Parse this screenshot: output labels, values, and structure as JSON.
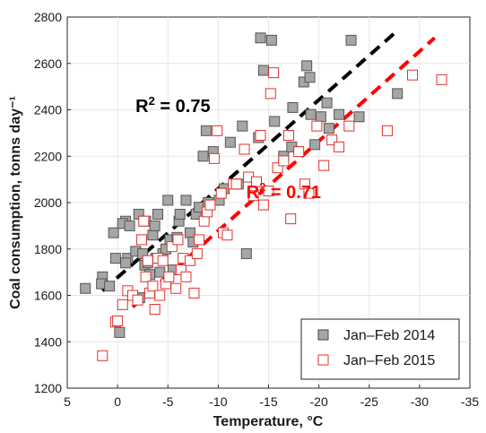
{
  "chart_data": {
    "type": "scatter",
    "xlabel": "Temperature, °C",
    "ylabel": "Coal consumption, tonns day⁻¹",
    "xlim": [
      5,
      -35
    ],
    "ylim": [
      1200,
      2800
    ],
    "x_reversed": true,
    "xticks": [
      5,
      0,
      -5,
      -10,
      -15,
      -20,
      -25,
      -30,
      -35
    ],
    "yticks": [
      1200,
      1400,
      1600,
      1800,
      2000,
      2200,
      2400,
      2600,
      2800
    ],
    "xtick_labels": [
      "5",
      "0",
      "-5",
      "-10",
      "-15",
      "-20",
      "-25",
      "-30",
      "-35"
    ],
    "ytick_labels": [
      "1200",
      "1400",
      "1600",
      "1800",
      "2000",
      "2200",
      "2400",
      "2600",
      "2800"
    ],
    "grid": true,
    "legend_position": "bottom-right",
    "series": [
      {
        "name": "Jan–Feb 2014",
        "marker": "filled-square",
        "color": "#555555",
        "fill": "#a6a6a6",
        "points": [
          [
            3.2,
            1630
          ],
          [
            1.5,
            1680
          ],
          [
            1.6,
            1650
          ],
          [
            0.8,
            1640
          ],
          [
            0.4,
            1870
          ],
          [
            0.2,
            1760
          ],
          [
            -0.8,
            1920
          ],
          [
            -0.5,
            1910
          ],
          [
            -1.0,
            1760
          ],
          [
            -1.2,
            1900
          ],
          [
            -0.2,
            1440
          ],
          [
            -0.8,
            1740
          ],
          [
            -1.5,
            1600
          ],
          [
            -1.8,
            1790
          ],
          [
            -2.1,
            1950
          ],
          [
            -2.2,
            1590
          ],
          [
            -2.5,
            1780
          ],
          [
            -2.7,
            1730
          ],
          [
            -2.8,
            1920
          ],
          [
            -3.0,
            1740
          ],
          [
            -3.2,
            1690
          ],
          [
            -3.5,
            1860
          ],
          [
            -3.7,
            1900
          ],
          [
            -3.8,
            1760
          ],
          [
            -4.0,
            1950
          ],
          [
            -4.2,
            1700
          ],
          [
            -4.5,
            1780
          ],
          [
            -4.8,
            1800
          ],
          [
            -5.0,
            2010
          ],
          [
            -5.2,
            1840
          ],
          [
            -5.5,
            1710
          ],
          [
            -5.9,
            1850
          ],
          [
            -6.1,
            1920
          ],
          [
            -6.2,
            1950
          ],
          [
            -6.8,
            2010
          ],
          [
            -7.2,
            1870
          ],
          [
            -7.5,
            1830
          ],
          [
            -7.8,
            1950
          ],
          [
            -8.1,
            1980
          ],
          [
            -8.5,
            2200
          ],
          [
            -8.8,
            2310
          ],
          [
            -9.0,
            2000
          ],
          [
            -9.5,
            2220
          ],
          [
            -10.1,
            2010
          ],
          [
            -10.6,
            2060
          ],
          [
            -11.2,
            2260
          ],
          [
            -12.0,
            2080
          ],
          [
            -12.4,
            2330
          ],
          [
            -12.8,
            1780
          ],
          [
            -14.0,
            2280
          ],
          [
            -14.2,
            2710
          ],
          [
            -14.5,
            2570
          ],
          [
            -15.3,
            2700
          ],
          [
            -15.6,
            2350
          ],
          [
            -16.5,
            2200
          ],
          [
            -17.3,
            2240
          ],
          [
            -17.4,
            2410
          ],
          [
            -18.5,
            2520
          ],
          [
            -18.8,
            2590
          ],
          [
            -19.1,
            2540
          ],
          [
            -19.2,
            2380
          ],
          [
            -19.6,
            2250
          ],
          [
            -20.2,
            2370
          ],
          [
            -20.8,
            2430
          ],
          [
            -21.0,
            2320
          ],
          [
            -22.0,
            2380
          ],
          [
            -23.2,
            2700
          ],
          [
            -24.0,
            2370
          ],
          [
            -27.8,
            2470
          ]
        ]
      },
      {
        "name": "Jan–Feb 2015",
        "marker": "open-square",
        "color": "#e0302a",
        "fill": "#ffffff",
        "points": [
          [
            1.5,
            1340
          ],
          [
            0.2,
            1485
          ],
          [
            0.0,
            1490
          ],
          [
            -0.5,
            1560
          ],
          [
            -1.0,
            1620
          ],
          [
            -1.5,
            1600
          ],
          [
            -2.0,
            1580
          ],
          [
            -2.4,
            1840
          ],
          [
            -2.6,
            1920
          ],
          [
            -2.8,
            1680
          ],
          [
            -3.0,
            1750
          ],
          [
            -3.2,
            1610
          ],
          [
            -3.5,
            1640
          ],
          [
            -3.7,
            1540
          ],
          [
            -4.0,
            1760
          ],
          [
            -4.2,
            1600
          ],
          [
            -4.5,
            1750
          ],
          [
            -4.8,
            1650
          ],
          [
            -5.1,
            1680
          ],
          [
            -5.4,
            1810
          ],
          [
            -5.8,
            1630
          ],
          [
            -6.0,
            1840
          ],
          [
            -6.3,
            1710
          ],
          [
            -6.5,
            1760
          ],
          [
            -6.8,
            1680
          ],
          [
            -7.2,
            1750
          ],
          [
            -7.6,
            1610
          ],
          [
            -7.9,
            1780
          ],
          [
            -8.1,
            1840
          ],
          [
            -8.6,
            1920
          ],
          [
            -8.9,
            1960
          ],
          [
            -9.2,
            1990
          ],
          [
            -9.6,
            2190
          ],
          [
            -9.9,
            2310
          ],
          [
            -10.3,
            2040
          ],
          [
            -10.5,
            1870
          ],
          [
            -10.9,
            1860
          ],
          [
            -11.5,
            2080
          ],
          [
            -11.8,
            2080
          ],
          [
            -12.6,
            2230
          ],
          [
            -13.0,
            2110
          ],
          [
            -13.5,
            2030
          ],
          [
            -13.8,
            2090
          ],
          [
            -14.2,
            2290
          ],
          [
            -14.5,
            1990
          ],
          [
            -15.0,
            2050
          ],
          [
            -15.2,
            2470
          ],
          [
            -15.5,
            2560
          ],
          [
            -15.9,
            2150
          ],
          [
            -16.5,
            2180
          ],
          [
            -17.0,
            2290
          ],
          [
            -17.2,
            1930
          ],
          [
            -18.0,
            2220
          ],
          [
            -18.6,
            2080
          ],
          [
            -19.0,
            2040
          ],
          [
            -19.8,
            2330
          ],
          [
            -20.5,
            2160
          ],
          [
            -21.3,
            2270
          ],
          [
            -22.0,
            2240
          ],
          [
            -23.0,
            2330
          ],
          [
            -26.8,
            2310
          ],
          [
            -29.3,
            2550
          ],
          [
            -32.2,
            2530
          ]
        ]
      }
    ],
    "fit_lines": [
      {
        "series": "Jan–Feb 2014",
        "from": [
          1.5,
          1620
        ],
        "to": [
          -27.5,
          2730
        ],
        "color": "#000000",
        "label": "R² = 0.75",
        "label_at": [
          -5.5,
          2390
        ]
      },
      {
        "series": "Jan–Feb 2015",
        "from": [
          -1.5,
          1550
        ],
        "to": [
          -31.5,
          2710
        ],
        "color": "#ff0000",
        "label": "R² = 0.71",
        "label_at": [
          -16.5,
          2020
        ]
      }
    ]
  }
}
